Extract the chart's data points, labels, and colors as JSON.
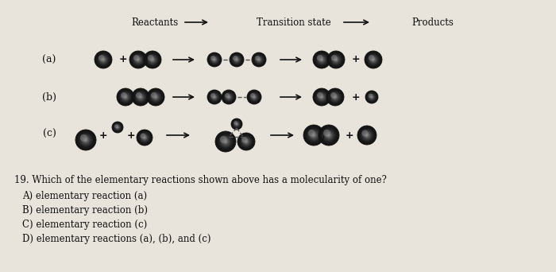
{
  "bg_color": "#e8e4dc",
  "header_labels": [
    "Reactants",
    "Transition state",
    "Products"
  ],
  "row_labels": [
    "(a)",
    "(b)",
    "(c)"
  ],
  "question_text": "19. Which of the elementary reactions shown above has a molecularity of one?",
  "answer_a": "  A) elementary reaction (a)",
  "answer_b": "  B) elementary reaction (b)",
  "answer_c": "  C) elementary reaction (c)",
  "answer_d": "  D) elementary reactions (a), (b), and (c)",
  "text_color": "#111111"
}
